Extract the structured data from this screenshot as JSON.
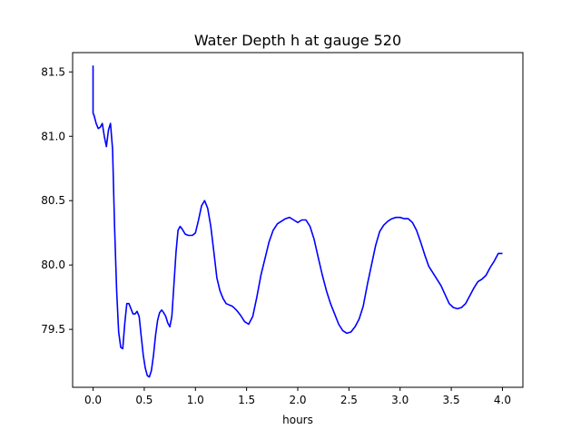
{
  "chart_data": {
    "type": "line",
    "title": "Water Depth h at gauge 520",
    "xlabel": "hours",
    "ylabel": "",
    "xlim": [
      -0.2,
      4.2
    ],
    "ylim": [
      79.05,
      81.65
    ],
    "xticks": [
      0.0,
      0.5,
      1.0,
      1.5,
      2.0,
      2.5,
      3.0,
      3.5,
      4.0
    ],
    "xtick_labels": [
      "0.0",
      "0.5",
      "1.0",
      "1.5",
      "2.0",
      "2.5",
      "3.0",
      "3.5",
      "4.0"
    ],
    "yticks": [
      79.5,
      80.0,
      80.5,
      81.0,
      81.5
    ],
    "ytick_labels": [
      "79.5",
      "80.0",
      "80.5",
      "81.0",
      "81.5"
    ],
    "grid": false,
    "line_color": "#0000ff",
    "series": [
      {
        "x": [
          0.0,
          0.0,
          0.01,
          0.03,
          0.05,
          0.07,
          0.09,
          0.11,
          0.13,
          0.15,
          0.17,
          0.19,
          0.21,
          0.23,
          0.25,
          0.27,
          0.29,
          0.31,
          0.33,
          0.35,
          0.37,
          0.39,
          0.41,
          0.43,
          0.45,
          0.47,
          0.49,
          0.51,
          0.53,
          0.55,
          0.57,
          0.59,
          0.61,
          0.63,
          0.65,
          0.67,
          0.69,
          0.71,
          0.73,
          0.75,
          0.77,
          0.79,
          0.81,
          0.83,
          0.85,
          0.87,
          0.9,
          0.93,
          0.97,
          1.0,
          1.03,
          1.06,
          1.09,
          1.12,
          1.15,
          1.18,
          1.21,
          1.24,
          1.27,
          1.3,
          1.33,
          1.36,
          1.4,
          1.44,
          1.48,
          1.52,
          1.56,
          1.6,
          1.64,
          1.68,
          1.72,
          1.76,
          1.8,
          1.84,
          1.88,
          1.92,
          1.96,
          2.0,
          2.04,
          2.08,
          2.12,
          2.16,
          2.2,
          2.24,
          2.28,
          2.32,
          2.36,
          2.4,
          2.44,
          2.48,
          2.52,
          2.56,
          2.6,
          2.64,
          2.68,
          2.72,
          2.76,
          2.8,
          2.84,
          2.88,
          2.92,
          2.96,
          3.0,
          3.04,
          3.08,
          3.12,
          3.16,
          3.2,
          3.24,
          3.28,
          3.32,
          3.36,
          3.4,
          3.44,
          3.48,
          3.52,
          3.56,
          3.6,
          3.64,
          3.68,
          3.72,
          3.76,
          3.8,
          3.84,
          3.88,
          3.92,
          3.96,
          4.0
        ],
        "y": [
          81.55,
          81.18,
          81.16,
          81.1,
          81.06,
          81.07,
          81.1,
          81.0,
          80.92,
          81.05,
          81.1,
          80.9,
          80.3,
          79.8,
          79.48,
          79.36,
          79.35,
          79.55,
          79.7,
          79.7,
          79.66,
          79.62,
          79.62,
          79.64,
          79.6,
          79.45,
          79.3,
          79.2,
          79.14,
          79.13,
          79.18,
          79.3,
          79.45,
          79.57,
          79.63,
          79.65,
          79.63,
          79.6,
          79.55,
          79.52,
          79.6,
          79.85,
          80.1,
          80.27,
          80.3,
          80.28,
          80.24,
          80.23,
          80.23,
          80.25,
          80.35,
          80.46,
          80.5,
          80.44,
          80.3,
          80.1,
          79.9,
          79.8,
          79.74,
          79.7,
          79.69,
          79.68,
          79.65,
          79.61,
          79.56,
          79.54,
          79.6,
          79.75,
          79.92,
          80.05,
          80.18,
          80.27,
          80.32,
          80.34,
          80.36,
          80.37,
          80.35,
          80.33,
          80.35,
          80.35,
          80.3,
          80.2,
          80.06,
          79.92,
          79.8,
          79.7,
          79.62,
          79.54,
          79.49,
          79.47,
          79.48,
          79.52,
          79.58,
          79.68,
          79.85,
          80.0,
          80.15,
          80.26,
          80.31,
          80.34,
          80.36,
          80.37,
          80.37,
          80.36,
          80.36,
          80.33,
          80.27,
          80.18,
          80.08,
          79.99,
          79.94,
          79.89,
          79.84,
          79.77,
          79.7,
          79.67,
          79.66,
          79.67,
          79.7,
          79.76,
          79.82,
          79.87,
          79.89,
          79.92,
          79.98,
          80.03,
          80.09,
          80.09
        ]
      }
    ]
  }
}
